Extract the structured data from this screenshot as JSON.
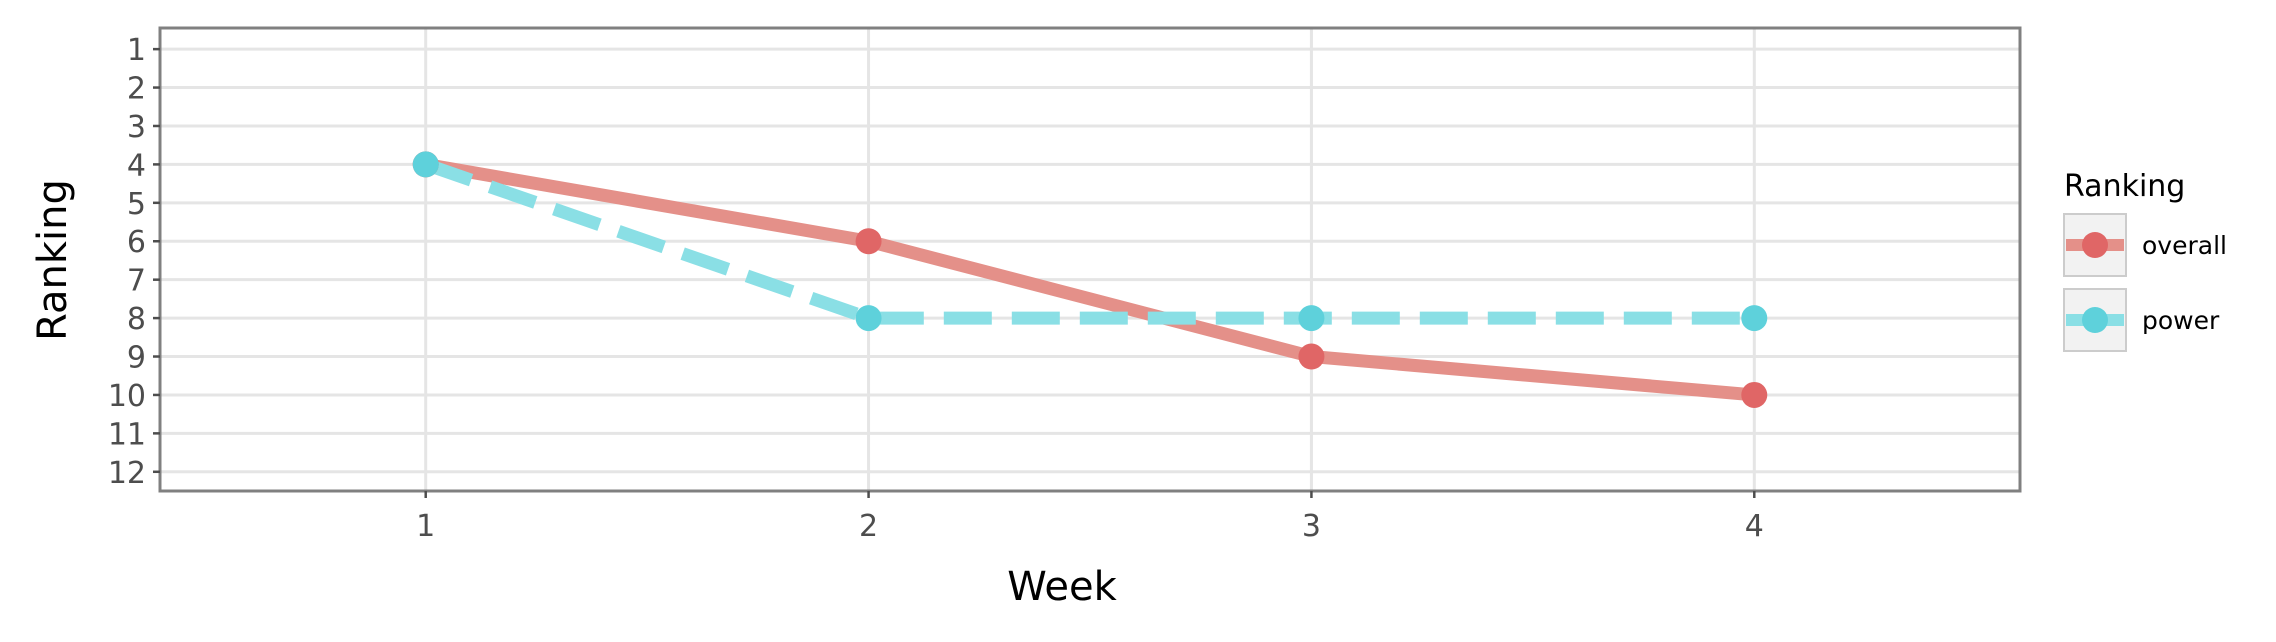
{
  "chart_data": {
    "type": "line",
    "xlabel": "Week",
    "ylabel": "Ranking",
    "x": [
      1,
      2,
      3,
      4
    ],
    "xlim": [
      0.4,
      4.6
    ],
    "ylim": [
      12.5,
      0.45
    ],
    "y_reversed": true,
    "x_ticks": [
      "1",
      "2",
      "3",
      "4"
    ],
    "y_ticks": [
      "1",
      "2",
      "3",
      "4",
      "5",
      "6",
      "7",
      "8",
      "9",
      "10",
      "11",
      "12"
    ],
    "grid": true,
    "legend": {
      "title": "Ranking",
      "position": "right"
    },
    "series": [
      {
        "name": "overall",
        "values": [
          4,
          6,
          9,
          10
        ],
        "color": "#e06666",
        "line_color": "#e49089",
        "line_style": "solid"
      },
      {
        "name": "power",
        "values": [
          4,
          8,
          8,
          8
        ],
        "color": "#5ed1db",
        "line_color": "#8adfe5",
        "line_style": "dashed"
      }
    ]
  }
}
